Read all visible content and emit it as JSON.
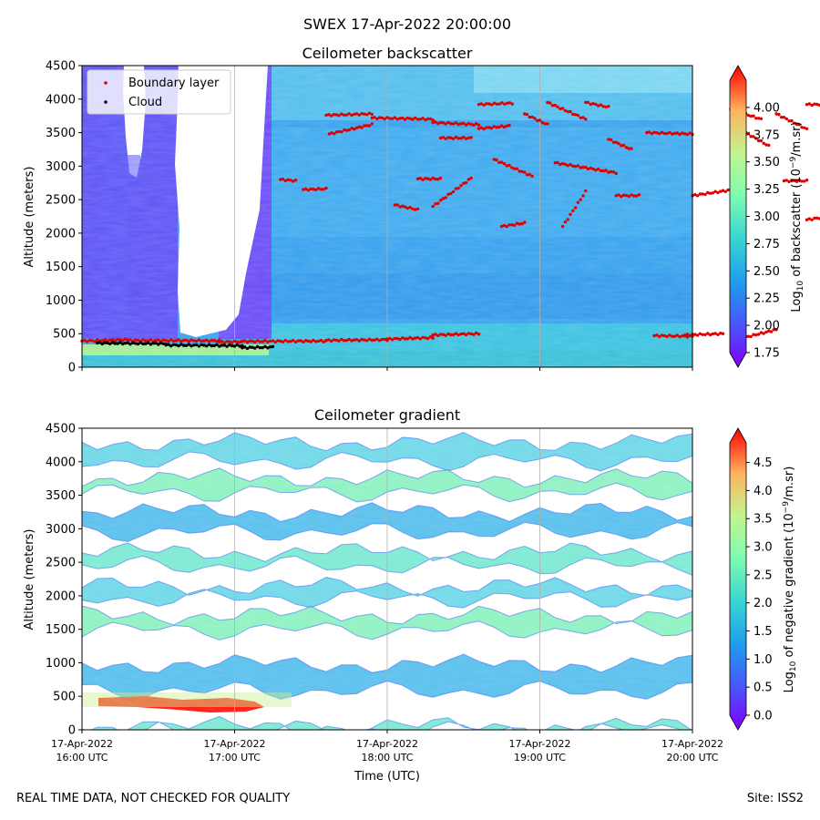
{
  "figure": {
    "suptitle": "SWEX 17-Apr-2022 20:00:00"
  },
  "chart_data": [
    {
      "type": "heatmap",
      "title": "Ceilometer backscatter",
      "xlabel": "",
      "ylabel": "Altitude (meters)",
      "ylim": [
        0,
        4500
      ],
      "yticks": [
        0,
        500,
        1000,
        1500,
        2000,
        2500,
        3000,
        3500,
        4000,
        4500
      ],
      "x_tick_labels": [],
      "grid": "vertical",
      "legend": {
        "placement": "top-left",
        "entries": [
          {
            "label": "Boundary layer",
            "color": "#e00000",
            "marker": "dot"
          },
          {
            "label": "Cloud",
            "color": "#000000",
            "marker": "dot"
          }
        ]
      },
      "colorbar": {
        "label_prefix": "Log",
        "label_sub": "10",
        "label_mid": " of backscatter (10",
        "label_sup": "−9",
        "label_suffix": "/m.sr)",
        "vmin": 1.75,
        "vmax": 4.25,
        "ticks": [
          "1.75",
          "2.00",
          "2.25",
          "2.50",
          "2.75",
          "3.00",
          "3.25",
          "3.50",
          "3.75",
          "4.00"
        ],
        "extend": "both",
        "colormap": "rainbow"
      },
      "boundary_layer_series": [
        {
          "x": [
            0.0,
            0.3
          ],
          "y": [
            390,
            410
          ]
        },
        {
          "x": [
            0.3,
            0.9
          ],
          "y": [
            400,
            395
          ]
        },
        {
          "x": [
            0.9,
            1.05
          ],
          "y": [
            375,
            380
          ]
        },
        {
          "x": [
            1.05,
            1.6
          ],
          "y": [
            385,
            390
          ]
        },
        {
          "x": [
            1.6,
            2.0
          ],
          "y": [
            400,
            410
          ]
        },
        {
          "x": [
            2.0,
            2.3
          ],
          "y": [
            420,
            440
          ]
        },
        {
          "x": [
            2.3,
            2.6
          ],
          "y": [
            480,
            500
          ]
        },
        {
          "x": [
            1.3,
            1.4
          ],
          "y": [
            2800,
            2780
          ]
        },
        {
          "x": [
            1.45,
            1.6
          ],
          "y": [
            2650,
            2660
          ]
        },
        {
          "x": [
            1.6,
            1.9
          ],
          "y": [
            3760,
            3780
          ]
        },
        {
          "x": [
            1.62,
            1.9
          ],
          "y": [
            3480,
            3620
          ]
        },
        {
          "x": [
            1.9,
            2.3
          ],
          "y": [
            3720,
            3700
          ]
        },
        {
          "x": [
            2.3,
            2.6
          ],
          "y": [
            3650,
            3620
          ]
        },
        {
          "x": [
            2.05,
            2.2
          ],
          "y": [
            2420,
            2350
          ]
        },
        {
          "x": [
            2.2,
            2.35
          ],
          "y": [
            2810,
            2810
          ]
        },
        {
          "x": [
            2.35,
            2.55
          ],
          "y": [
            3420,
            3420
          ]
        },
        {
          "x": [
            2.3,
            2.55
          ],
          "y": [
            2400,
            2820
          ]
        },
        {
          "x": [
            2.6,
            2.82
          ],
          "y": [
            3920,
            3940
          ]
        },
        {
          "x": [
            2.6,
            2.8
          ],
          "y": [
            3560,
            3600
          ]
        },
        {
          "x": [
            2.7,
            2.95
          ],
          "y": [
            3100,
            2850
          ]
        },
        {
          "x": [
            2.75,
            2.9
          ],
          "y": [
            2100,
            2150
          ]
        },
        {
          "x": [
            2.9,
            3.05
          ],
          "y": [
            3780,
            3620
          ]
        },
        {
          "x": [
            3.05,
            3.3
          ],
          "y": [
            3950,
            3700
          ]
        },
        {
          "x": [
            3.1,
            3.5
          ],
          "y": [
            3050,
            2900
          ]
        },
        {
          "x": [
            3.15,
            3.3
          ],
          "y": [
            2100,
            2620
          ]
        },
        {
          "x": [
            3.3,
            3.45
          ],
          "y": [
            3950,
            3880
          ]
        },
        {
          "x": [
            3.45,
            3.6
          ],
          "y": [
            3400,
            3250
          ]
        },
        {
          "x": [
            3.5,
            3.65
          ],
          "y": [
            2560,
            2560
          ]
        },
        {
          "x": [
            3.7,
            4.0
          ],
          "y": [
            3500,
            3480
          ]
        },
        {
          "x": [
            3.75,
            4.0
          ],
          "y": [
            470,
            460
          ]
        },
        {
          "x": [
            3.95,
            4.2
          ],
          "y": [
            480,
            500
          ]
        },
        {
          "x": [
            4.0,
            4.3
          ],
          "y": [
            2560,
            2660
          ]
        },
        {
          "x": [
            4.3,
            4.55
          ],
          "y": [
            420,
            560
          ]
        },
        {
          "x": [
            4.25,
            4.45
          ],
          "y": [
            3850,
            3700
          ]
        },
        {
          "x": [
            4.55,
            4.75
          ],
          "y": [
            3780,
            3550
          ]
        },
        {
          "x": [
            4.35,
            4.5
          ],
          "y": [
            3500,
            3300
          ]
        },
        {
          "x": [
            4.6,
            4.75
          ],
          "y": [
            2780,
            2780
          ]
        },
        {
          "x": [
            4.75,
            4.9
          ],
          "y": [
            3920,
            3920
          ]
        },
        {
          "x": [
            4.75,
            4.9
          ],
          "y": [
            2200,
            2250
          ]
        }
      ],
      "cloud_series": [
        {
          "x": [
            0.1,
            0.55
          ],
          "y": [
            360,
            350
          ]
        },
        {
          "x": [
            0.55,
            1.05
          ],
          "y": [
            330,
            320
          ]
        },
        {
          "x": [
            1.05,
            1.25
          ],
          "y": [
            290,
            300
          ]
        }
      ]
    },
    {
      "type": "heatmap",
      "title": "Ceilometer gradient",
      "xlabel": "Time (UTC)",
      "ylabel": "Altitude (meters)",
      "ylim": [
        0,
        4500
      ],
      "yticks": [
        0,
        500,
        1000,
        1500,
        2000,
        2500,
        3000,
        3500,
        4000,
        4500
      ],
      "x_tick_labels": [
        {
          "line1": "17-Apr-2022",
          "line2": "16:00 UTC"
        },
        {
          "line1": "17-Apr-2022",
          "line2": "17:00 UTC"
        },
        {
          "line1": "17-Apr-2022",
          "line2": "18:00 UTC"
        },
        {
          "line1": "17-Apr-2022",
          "line2": "19:00 UTC"
        },
        {
          "line1": "17-Apr-2022",
          "line2": "20:00 UTC"
        }
      ],
      "xlim_hours_utc": [
        16,
        20
      ],
      "grid": "vertical",
      "colorbar": {
        "label_prefix": "Log",
        "label_sub": "10",
        "label_mid": " of negative gradient (10",
        "label_sup": "−9",
        "label_suffix": "/m.sr)",
        "vmin": 0.0,
        "vmax": 4.85,
        "ticks": [
          "0.0",
          "0.5",
          "1.0",
          "1.5",
          "2.0",
          "2.5",
          "3.0",
          "3.5",
          "4.0",
          "4.5"
        ],
        "extend": "both",
        "colormap": "rainbow"
      },
      "gradient_bands": [
        {
          "y_center": 4150,
          "thickness": 280
        },
        {
          "y_center": 3650,
          "thickness": 220
        },
        {
          "y_center": 3100,
          "thickness": 300
        },
        {
          "y_center": 2550,
          "thickness": 200
        },
        {
          "y_center": 2050,
          "thickness": 180
        },
        {
          "y_center": 1600,
          "thickness": 220
        },
        {
          "y_center": 780,
          "thickness": 400
        },
        {
          "y_center": 20,
          "thickness": 60
        }
      ]
    }
  ],
  "footer": {
    "left": "REAL TIME DATA, NOT CHECKED FOR QUALITY",
    "right": "Site: ISS2"
  }
}
